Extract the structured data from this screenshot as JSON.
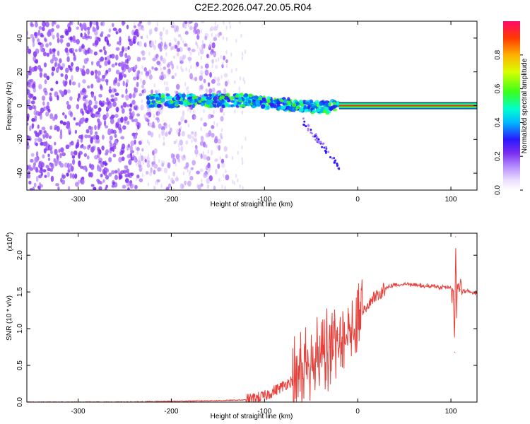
{
  "title": "C2E2.2026.047.20.05.R04",
  "chart_data": [
    {
      "type": "heatmap",
      "xlabel": "Height of straight line (km)",
      "ylabel": "Frequency (Hz)",
      "xlim": [
        -355,
        128
      ],
      "ylim": [
        -50,
        50
      ],
      "xticks": [
        -300,
        -200,
        -100,
        0,
        100
      ],
      "xtick_labels": [
        "-300",
        "-200",
        "-100",
        "0",
        "100"
      ],
      "yticks": [
        -40,
        -20,
        0,
        20,
        40
      ],
      "ytick_labels": [
        "-40",
        "-20",
        "0",
        "20",
        "40"
      ],
      "colorbar": {
        "label": "Normalized spectral amplitude",
        "range": [
          0,
          1
        ],
        "ticks": [
          0.0,
          0.2,
          0.4,
          0.6,
          0.8
        ],
        "tick_labels": [
          "0.0",
          "0.2",
          "0.4",
          "0.6",
          "0.8"
        ]
      },
      "features": [
        {
          "name": "broadband noise",
          "x_range": [
            -355,
            -140
          ],
          "freq_range": [
            -50,
            50
          ],
          "amplitude": 0.15
        },
        {
          "name": "signal band",
          "x_range": [
            -225,
            -20
          ],
          "freq_center": 2,
          "amplitude": 0.3
        },
        {
          "name": "strong carrier",
          "x_range": [
            -20,
            128
          ],
          "freq_center": 0,
          "amplitude": 0.95
        }
      ]
    },
    {
      "type": "line",
      "xlabel": "Height of straight line (km)",
      "ylabel": "SNR (10 * v/v)",
      "multiplier": "(x10",
      "multiplier_exp": "4",
      "multiplier_close": ")",
      "xlim": [
        -355,
        128
      ],
      "ylim": [
        0,
        2.3
      ],
      "xticks": [
        -300,
        -200,
        -100,
        0,
        100
      ],
      "xtick_labels": [
        "-300",
        "-200",
        "-100",
        "0",
        "100"
      ],
      "yticks": [
        0,
        0.5,
        1.0,
        1.5,
        2.0
      ],
      "ytick_labels": [
        "0.0",
        "0.5",
        "1.0",
        "1.5",
        "2.0"
      ],
      "series": [
        {
          "name": "SNR",
          "color": "#e8403a",
          "x": [
            -355,
            -300,
            -250,
            -200,
            -150,
            -120,
            -100,
            -90,
            -80,
            -70,
            -60,
            -50,
            -40,
            -30,
            -20,
            -10,
            0,
            10,
            20,
            30,
            40,
            50,
            60,
            70,
            80,
            90,
            100,
            103,
            104,
            105,
            106,
            107,
            110,
            120,
            128
          ],
          "y": [
            0.0,
            0.0,
            0.0,
            0.01,
            0.02,
            0.03,
            0.08,
            0.15,
            0.22,
            0.3,
            0.38,
            0.48,
            0.6,
            0.75,
            0.92,
            1.05,
            1.18,
            1.3,
            1.45,
            1.55,
            1.6,
            1.61,
            1.6,
            1.59,
            1.58,
            1.56,
            1.55,
            1.4,
            0.68,
            2.25,
            1.2,
            1.6,
            1.53,
            1.5,
            1.49
          ]
        }
      ]
    }
  ]
}
